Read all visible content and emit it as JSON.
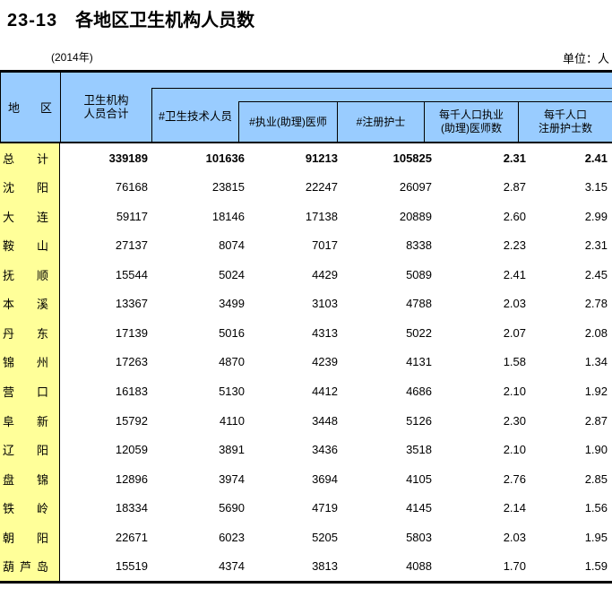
{
  "page": {
    "title_code": "23-13",
    "title": "各地区卫生机构人员数",
    "year_note": "(2014年)",
    "unit_note": "单位：人"
  },
  "colors": {
    "header_bg": "#99CCFF",
    "region_col_bg": "#FFFF99",
    "border": "#000000"
  },
  "table": {
    "header": {
      "region": "地区",
      "total_line1": "卫生机构",
      "total_line2": "人员合计",
      "tech": "#卫生技术人员",
      "doctor": "#执业(助理)医师",
      "nurse": "#注册护士",
      "doctor_per_1000_line1": "每千人口执业",
      "doctor_per_1000_line2": "(助理)医师数",
      "nurse_per_1000_line1": "每千人口",
      "nurse_per_1000_line2": "注册护士数"
    },
    "rows": [
      {
        "region": "总计",
        "values": [
          "339189",
          "101636",
          "91213",
          "105825",
          "2.31",
          "2.41"
        ]
      },
      {
        "region": "沈阳",
        "values": [
          "76168",
          "23815",
          "22247",
          "26097",
          "2.87",
          "3.15"
        ]
      },
      {
        "region": "大连",
        "values": [
          "59117",
          "18146",
          "17138",
          "20889",
          "2.60",
          "2.99"
        ]
      },
      {
        "region": "鞍山",
        "values": [
          "27137",
          "8074",
          "7017",
          "8338",
          "2.23",
          "2.31"
        ]
      },
      {
        "region": "抚顺",
        "values": [
          "15544",
          "5024",
          "4429",
          "5089",
          "2.41",
          "2.45"
        ]
      },
      {
        "region": "本溪",
        "values": [
          "13367",
          "3499",
          "3103",
          "4788",
          "2.03",
          "2.78"
        ]
      },
      {
        "region": "丹东",
        "values": [
          "17139",
          "5016",
          "4313",
          "5022",
          "2.07",
          "2.08"
        ]
      },
      {
        "region": "锦州",
        "values": [
          "17263",
          "4870",
          "4239",
          "4131",
          "1.58",
          "1.34"
        ]
      },
      {
        "region": "营口",
        "values": [
          "16183",
          "5130",
          "4412",
          "4686",
          "2.10",
          "1.92"
        ]
      },
      {
        "region": "阜新",
        "values": [
          "15792",
          "4110",
          "3448",
          "5126",
          "2.30",
          "2.87"
        ]
      },
      {
        "region": "辽阳",
        "values": [
          "12059",
          "3891",
          "3436",
          "3518",
          "2.10",
          "1.90"
        ]
      },
      {
        "region": "盘锦",
        "values": [
          "12896",
          "3974",
          "3694",
          "4105",
          "2.76",
          "2.85"
        ]
      },
      {
        "region": "铁岭",
        "values": [
          "18334",
          "5690",
          "4719",
          "4145",
          "2.14",
          "1.56"
        ]
      },
      {
        "region": "朝阳",
        "values": [
          "22671",
          "6023",
          "5205",
          "5803",
          "2.03",
          "1.95"
        ]
      },
      {
        "region": "葫芦岛",
        "values": [
          "15519",
          "4374",
          "3813",
          "4088",
          "1.70",
          "1.59"
        ]
      }
    ]
  }
}
